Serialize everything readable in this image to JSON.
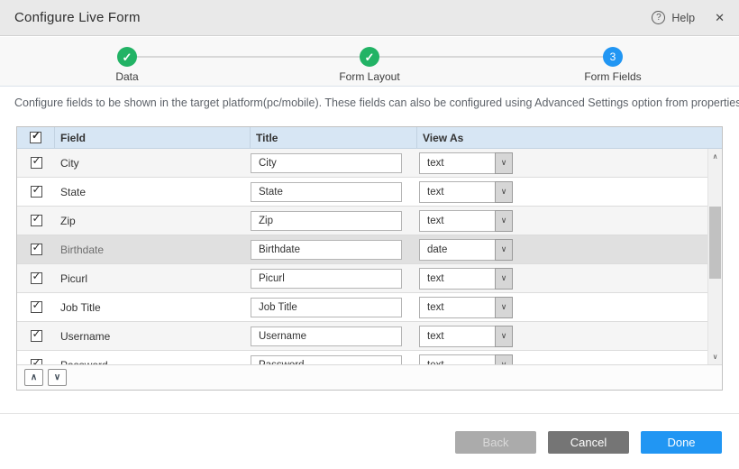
{
  "header": {
    "title": "Configure Live Form",
    "help_label": "Help"
  },
  "icons": {
    "help": "?",
    "close": "✕",
    "check": "✓",
    "chevron_up": "∧",
    "chevron_down": "∨"
  },
  "stepper": {
    "steps": [
      {
        "label": "Data",
        "status": "done"
      },
      {
        "label": "Form Layout",
        "status": "done"
      },
      {
        "label": "Form Fields",
        "status": "current",
        "number": "3"
      }
    ]
  },
  "description": "Configure fields to be shown in the target platform(pc/mobile). These fields can also be configured using Advanced Settings option from properties panel.",
  "table": {
    "columns": [
      "Field",
      "Title",
      "View As"
    ],
    "header_checkbox_checked": true,
    "rows": [
      {
        "field": "City",
        "title": "City",
        "view_as": "text",
        "checked": true,
        "selected": false
      },
      {
        "field": "State",
        "title": "State",
        "view_as": "text",
        "checked": true,
        "selected": false
      },
      {
        "field": "Zip",
        "title": "Zip",
        "view_as": "text",
        "checked": true,
        "selected": false
      },
      {
        "field": "Birthdate",
        "title": "Birthdate",
        "view_as": "date",
        "checked": true,
        "selected": true
      },
      {
        "field": "Picurl",
        "title": "Picurl",
        "view_as": "text",
        "checked": true,
        "selected": false
      },
      {
        "field": "Job Title",
        "title": "Job Title",
        "view_as": "text",
        "checked": true,
        "selected": false
      },
      {
        "field": "Username",
        "title": "Username",
        "view_as": "text",
        "checked": true,
        "selected": false
      },
      {
        "field": "Password",
        "title": "Password",
        "view_as": "text",
        "checked": true,
        "selected": false
      }
    ]
  },
  "footer": {
    "back_label": "Back",
    "cancel_label": "Cancel",
    "done_label": "Done"
  },
  "colors": {
    "accent_blue": "#2196f3",
    "step_green": "#22b365",
    "table_header_bg": "#d7e6f4",
    "selected_row_bg": "#e0e0e0"
  }
}
